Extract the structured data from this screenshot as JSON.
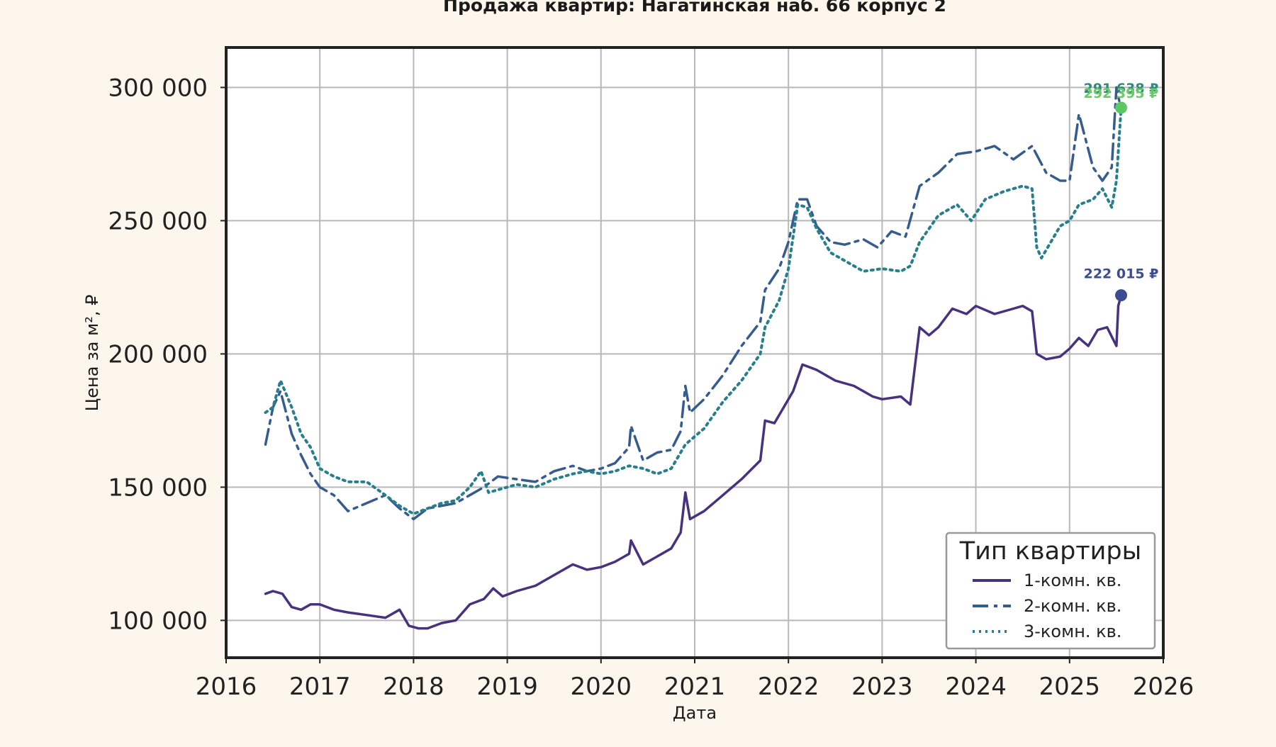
{
  "chart_data": {
    "type": "line",
    "title": "Продажа квартир: Нагатинская наб. 66 корпус 2",
    "xlabel": "Дата",
    "ylabel": "Цена за м², ₽",
    "xlim": [
      2016.0,
      2026.0
    ],
    "ylim": [
      86000,
      315000
    ],
    "x_ticks": [
      2016,
      2017,
      2018,
      2019,
      2020,
      2021,
      2022,
      2023,
      2024,
      2025,
      2026
    ],
    "x_tick_labels": [
      "2016",
      "2017",
      "2018",
      "2019",
      "2020",
      "2021",
      "2022",
      "2023",
      "2024",
      "2025",
      "2026"
    ],
    "y_ticks": [
      100000,
      150000,
      200000,
      250000,
      300000
    ],
    "y_tick_labels": [
      "100 000",
      "150 000",
      "200 000",
      "250 000",
      "300 000"
    ],
    "grid": true,
    "legend": {
      "title": "Тип квартиры",
      "placement": "lower-right"
    },
    "series": [
      {
        "name": "1-комн. кв.",
        "color": "#46327e",
        "dash": "solid",
        "x": [
          2016.42,
          2016.5,
          2016.6,
          2016.7,
          2016.8,
          2016.9,
          2017.0,
          2017.15,
          2017.3,
          2017.5,
          2017.7,
          2017.85,
          2017.95,
          2018.05,
          2018.15,
          2018.3,
          2018.45,
          2018.6,
          2018.75,
          2018.85,
          2018.95,
          2019.1,
          2019.3,
          2019.5,
          2019.7,
          2019.85,
          2020.0,
          2020.15,
          2020.3,
          2020.32,
          2020.45,
          2020.6,
          2020.75,
          2020.85,
          2020.9,
          2020.95,
          2021.1,
          2021.3,
          2021.5,
          2021.7,
          2021.75,
          2021.85,
          2021.95,
          2022.05,
          2022.15,
          2022.3,
          2022.5,
          2022.7,
          2022.9,
          2023.0,
          2023.2,
          2023.3,
          2023.4,
          2023.5,
          2023.6,
          2023.75,
          2023.9,
          2024.0,
          2024.2,
          2024.4,
          2024.5,
          2024.6,
          2024.65,
          2024.75,
          2024.9,
          2025.0,
          2025.1,
          2025.2,
          2025.3,
          2025.4,
          2025.5,
          2025.52,
          2025.55
        ],
        "y": [
          110000,
          111000,
          110000,
          105000,
          104000,
          106000,
          106000,
          104000,
          103000,
          102000,
          101000,
          104000,
          98000,
          97000,
          97000,
          99000,
          100000,
          106000,
          108000,
          112000,
          109000,
          111000,
          113000,
          117000,
          121000,
          119000,
          120000,
          122000,
          125000,
          130000,
          121000,
          124000,
          127000,
          133000,
          148000,
          138000,
          141000,
          147000,
          153000,
          160000,
          175000,
          174000,
          180000,
          186000,
          196000,
          194000,
          190000,
          188000,
          184000,
          183000,
          184000,
          181000,
          210000,
          207000,
          210000,
          217000,
          215000,
          218000,
          215000,
          217000,
          218000,
          216000,
          200000,
          198000,
          199000,
          202000,
          206000,
          203000,
          209000,
          210000,
          203000,
          218000,
          222015
        ]
      },
      {
        "name": "2-комн. кв.",
        "color": "#365c8d",
        "dash": "dashdot",
        "x": [
          2016.42,
          2016.5,
          2016.58,
          2016.7,
          2016.8,
          2016.9,
          2017.0,
          2017.15,
          2017.3,
          2017.5,
          2017.7,
          2017.85,
          2018.0,
          2018.15,
          2018.3,
          2018.45,
          2018.6,
          2018.75,
          2018.9,
          2019.1,
          2019.3,
          2019.5,
          2019.7,
          2019.85,
          2020.0,
          2020.15,
          2020.3,
          2020.32,
          2020.45,
          2020.6,
          2020.75,
          2020.85,
          2020.9,
          2020.95,
          2021.1,
          2021.3,
          2021.5,
          2021.7,
          2021.75,
          2021.9,
          2022.0,
          2022.1,
          2022.2,
          2022.3,
          2022.45,
          2022.6,
          2022.8,
          2022.95,
          2023.1,
          2023.25,
          2023.4,
          2023.6,
          2023.8,
          2024.0,
          2024.2,
          2024.4,
          2024.6,
          2024.75,
          2024.9,
          2025.0,
          2025.1,
          2025.25,
          2025.35,
          2025.45,
          2025.5,
          2025.55
        ],
        "y": [
          166000,
          180000,
          186000,
          170000,
          162000,
          155000,
          150000,
          147000,
          141000,
          144000,
          147000,
          142000,
          138000,
          142000,
          143000,
          144000,
          147000,
          150000,
          154000,
          153000,
          152000,
          156000,
          158000,
          156000,
          157000,
          159000,
          165000,
          173000,
          160000,
          163000,
          164000,
          171000,
          188000,
          178000,
          183000,
          192000,
          203000,
          212000,
          224000,
          232000,
          242000,
          258000,
          258000,
          248000,
          242000,
          241000,
          243000,
          240000,
          246000,
          244000,
          263000,
          268000,
          275000,
          276000,
          278000,
          273000,
          278000,
          268000,
          265000,
          265000,
          290000,
          270000,
          265000,
          270000,
          300000,
          291638
        ]
      },
      {
        "name": "3-комн. кв.",
        "color": "#277f8e",
        "dash": "dotted",
        "x": [
          2016.42,
          2016.5,
          2016.58,
          2016.7,
          2016.8,
          2016.9,
          2017.0,
          2017.15,
          2017.3,
          2017.5,
          2017.7,
          2017.85,
          2018.0,
          2018.15,
          2018.3,
          2018.45,
          2018.6,
          2018.72,
          2018.8,
          2018.9,
          2019.1,
          2019.3,
          2019.5,
          2019.7,
          2019.85,
          2020.0,
          2020.15,
          2020.3,
          2020.45,
          2020.6,
          2020.75,
          2020.9,
          2021.1,
          2021.3,
          2021.5,
          2021.7,
          2021.75,
          2021.9,
          2022.0,
          2022.1,
          2022.2,
          2022.3,
          2022.45,
          2022.6,
          2022.8,
          2023.0,
          2023.2,
          2023.3,
          2023.4,
          2023.6,
          2023.8,
          2023.95,
          2024.1,
          2024.3,
          2024.5,
          2024.6,
          2024.65,
          2024.7,
          2024.8,
          2024.9,
          2025.0,
          2025.1,
          2025.25,
          2025.35,
          2025.45,
          2025.5,
          2025.55
        ],
        "y": [
          178000,
          180000,
          190000,
          180000,
          170000,
          165000,
          157000,
          154000,
          152000,
          152000,
          147000,
          143000,
          140000,
          142000,
          144000,
          145000,
          150000,
          156000,
          148000,
          149000,
          151000,
          150000,
          153000,
          155000,
          156000,
          155000,
          156000,
          158000,
          157000,
          155000,
          157000,
          166000,
          172000,
          182000,
          190000,
          200000,
          210000,
          220000,
          232000,
          256000,
          255000,
          247000,
          238000,
          235000,
          231000,
          232000,
          231000,
          233000,
          242000,
          252000,
          256000,
          250000,
          258000,
          261000,
          263000,
          262000,
          240000,
          236000,
          242000,
          248000,
          250000,
          256000,
          258000,
          262000,
          255000,
          265000,
          292395
        ]
      }
    ],
    "annotations": [
      {
        "text": "291 638 ₽",
        "x": 2025.55,
        "y": 291638,
        "color": "#2e8a7a"
      },
      {
        "text": "292 395 ₽",
        "x": 2025.55,
        "y": 292395,
        "color": "#6cc96a"
      },
      {
        "text": "222 015 ₽",
        "x": 2025.55,
        "y": 222015,
        "color": "#3b4d8f"
      }
    ],
    "end_markers": [
      {
        "x": 2025.55,
        "y": 292395,
        "color": "#5cc863"
      },
      {
        "x": 2025.55,
        "y": 222015,
        "color": "#3b4d8f"
      }
    ]
  }
}
